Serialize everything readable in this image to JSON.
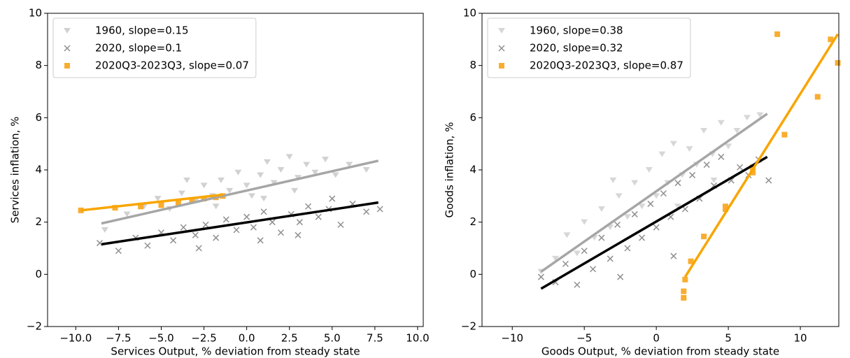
{
  "chart_data": [
    {
      "type": "scatter",
      "xlabel": "Services Output, % deviation from steady state",
      "ylabel": "Services inflation, %",
      "xlim": [
        -11.65,
        10.33
      ],
      "ylim": [
        -2,
        10
      ],
      "xticks": [
        {
          "value": -10,
          "label": "−10.0"
        },
        {
          "value": -7.5,
          "label": "−7.5"
        },
        {
          "value": -5,
          "label": "−5.0"
        },
        {
          "value": -2.5,
          "label": "−2.5"
        },
        {
          "value": 0,
          "label": "0.0"
        },
        2.5,
        {
          "value": 5,
          "label": "5.0"
        },
        7.5,
        {
          "value": 10,
          "label": "10.0"
        }
      ],
      "yticks": [
        {
          "value": -2,
          "label": "−2"
        },
        0,
        2,
        4,
        6,
        8,
        10
      ],
      "legend": "upper left",
      "series": [
        {
          "name": "1960, slope=0.15",
          "color": "#bdbdbd",
          "alpha": 0.7,
          "marker": "v",
          "x": [
            -8.3,
            -7,
            -6,
            -5.2,
            -4.5,
            -3.8,
            -3,
            -2.5,
            -2,
            -1.5,
            -1,
            -0.5,
            0,
            0.3,
            0.8,
            1.2,
            1.6,
            2,
            2.5,
            3,
            3.5,
            4,
            4.6,
            5.2,
            6,
            7,
            -3.5,
            -1.8,
            1,
            2.8
          ],
          "values": [
            1.7,
            2.3,
            2.6,
            2.9,
            2.5,
            3.1,
            2.8,
            3.4,
            3,
            3.6,
            3.2,
            3.9,
            3.4,
            3,
            3.8,
            4.3,
            3.5,
            4,
            4.5,
            3.7,
            4.2,
            3.9,
            4.4,
            3.8,
            4.2,
            4,
            3.6,
            2.6,
            2.9,
            3.2
          ]
        },
        {
          "name": "2020, slope=0.1",
          "color": "#222222",
          "alpha": 0.5,
          "marker": "x",
          "x": [
            -8.6,
            -7.5,
            -6.5,
            -5.8,
            -5,
            -4.3,
            -3.7,
            -3,
            -2.4,
            -1.8,
            -1.2,
            -0.6,
            0,
            0.4,
            1,
            1.5,
            2,
            2.6,
            3.1,
            3.6,
            4.2,
            4.8,
            5.5,
            6.2,
            7,
            7.8,
            0.8,
            -2.8,
            3,
            5
          ],
          "values": [
            1.2,
            0.9,
            1.4,
            1.1,
            1.6,
            1.3,
            1.8,
            1.5,
            1.9,
            1.4,
            2.1,
            1.7,
            2.2,
            1.8,
            2.4,
            2,
            1.6,
            2.3,
            2,
            2.6,
            2.2,
            2.5,
            1.9,
            2.7,
            2.4,
            2.5,
            1.3,
            1,
            1.5,
            2.9
          ]
        },
        {
          "name": "2020Q3-2023Q3, slope=0.07",
          "color": "#f9ad2f",
          "alpha": 1,
          "marker": "s",
          "x": [
            -9.7,
            -7.7,
            -6.2,
            -5,
            -4,
            -3.2,
            -2.5,
            -1.8,
            -1.4
          ],
          "values": [
            2.45,
            2.55,
            2.6,
            2.65,
            2.75,
            2.85,
            2.9,
            2.95,
            3.0
          ]
        }
      ],
      "lines": [
        {
          "color": "#a6a6a6",
          "x": [
            -8.5,
            7.7
          ],
          "values": [
            1.95,
            4.35
          ]
        },
        {
          "color": "#000000",
          "x": [
            -8.5,
            7.7
          ],
          "values": [
            1.15,
            2.75
          ]
        },
        {
          "color": "#f9a500",
          "x": [
            -9.7,
            -1.4
          ],
          "values": [
            2.45,
            3.05
          ]
        }
      ]
    },
    {
      "type": "scatter",
      "xlabel": "Goods Output, % deviation from steady state",
      "ylabel": "Goods inflation, %",
      "xlim": [
        -12.1,
        12.67
      ],
      "ylim": [
        -2,
        10
      ],
      "xticks": [
        {
          "value": -10,
          "label": "−10"
        },
        {
          "value": -5,
          "label": "−5"
        },
        0,
        5,
        10
      ],
      "yticks": [
        {
          "value": -2,
          "label": "−2"
        },
        0,
        2,
        4,
        6,
        8,
        10
      ],
      "legend": "upper left",
      "series": [
        {
          "name": "1960, slope=0.38",
          "color": "#bdbdbd",
          "alpha": 0.6,
          "marker": "v",
          "x": [
            -8,
            -7,
            -6.2,
            -5.5,
            -5,
            -4.3,
            -3.8,
            -3.2,
            -2.6,
            -2,
            -1.5,
            -1,
            -0.5,
            0,
            0.4,
            0.8,
            1.2,
            1.8,
            2.3,
            2.8,
            3.3,
            3.9,
            4.5,
            5,
            5.6,
            6.3,
            7.2,
            -3,
            1.5,
            4
          ],
          "values": [
            0.1,
            0.6,
            1.5,
            0.8,
            2,
            1.4,
            2.5,
            1.8,
            3,
            2.2,
            3.5,
            2.6,
            4,
            3,
            4.6,
            3.5,
            5,
            3.8,
            4.8,
            4.2,
            5.5,
            4.6,
            5.8,
            4.9,
            5.5,
            6,
            6.1,
            3.6,
            2.6,
            3.6
          ]
        },
        {
          "name": "2020, slope=0.32",
          "color": "#222222",
          "alpha": 0.5,
          "marker": "x",
          "x": [
            -8,
            -7,
            -6.3,
            -5.5,
            -5,
            -4.4,
            -3.8,
            -3.2,
            -2.7,
            -2,
            -1.5,
            -1,
            -0.4,
            0,
            0.5,
            1,
            1.5,
            2,
            2.5,
            3,
            3.5,
            4,
            4.5,
            5.2,
            5.8,
            6.4,
            7.1,
            7.8,
            -2.5,
            1.2
          ],
          "values": [
            -0.1,
            -0.3,
            0.4,
            -0.4,
            0.9,
            0.2,
            1.4,
            0.6,
            1.9,
            1,
            2.3,
            1.4,
            2.7,
            1.8,
            3.1,
            2.2,
            3.5,
            2.5,
            3.8,
            2.9,
            4.2,
            3.4,
            4.5,
            3.6,
            4.1,
            3.8,
            4.4,
            3.6,
            -0.1,
            0.7
          ]
        },
        {
          "name": "2020Q3-2023Q3, slope=0.87",
          "color": "#f9ad2f",
          "alpha": 1,
          "marker": "s",
          "x": [
            8.4,
            12.1,
            12.6,
            11.2,
            8.9,
            6.7,
            6.7,
            4.8,
            4.8,
            3.3,
            2.4,
            2,
            1.9,
            1.9
          ],
          "values": [
            9.2,
            9,
            8.1,
            6.8,
            5.35,
            4.1,
            3.9,
            2.6,
            2.5,
            1.45,
            0.5,
            -0.2,
            -0.65,
            -0.9
          ]
        }
      ],
      "lines": [
        {
          "color": "#a6a6a6",
          "x": [
            -8,
            7.7
          ],
          "values": [
            0.1,
            6.15
          ]
        },
        {
          "color": "#000000",
          "x": [
            -8,
            7.7
          ],
          "values": [
            -0.55,
            4.5
          ]
        },
        {
          "color": "#f9a500",
          "x": [
            2,
            12.6
          ],
          "values": [
            -0.1,
            9.2
          ]
        }
      ]
    }
  ]
}
